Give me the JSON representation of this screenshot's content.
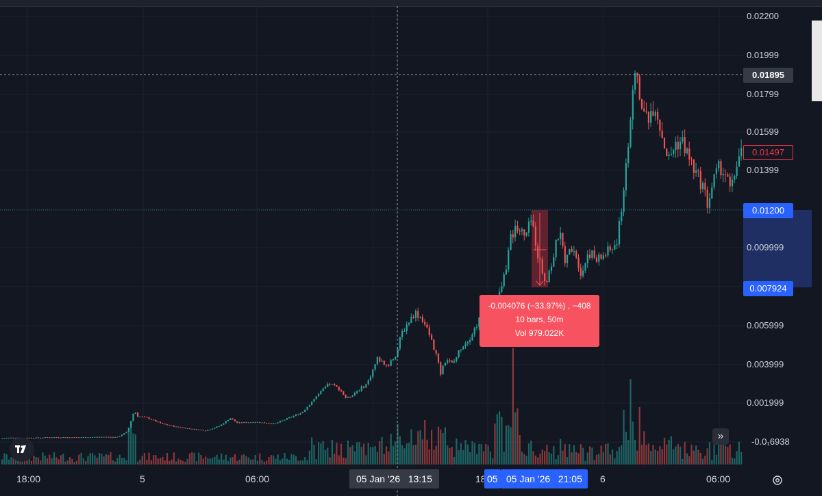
{
  "chart_data": {
    "type": "candlestick",
    "price_axis": {
      "tick_labels": [
        "0.02200",
        "0.01999",
        "0.01799",
        "0.01599",
        "0.01399",
        "0.009999",
        "0.005999",
        "0.003999",
        "0.001999",
        "-0.0₁6938"
      ],
      "last_price": "0.01895",
      "current_price": "0.01497",
      "range_high": "0.01200",
      "range_low": "0.007924"
    },
    "time_axis": {
      "tick_labels": [
        "18:00",
        "5",
        "06:00",
        "18",
        "6",
        "06:00"
      ],
      "crosshair_time": "05 Jan '26   13:15",
      "range_start_prefix": "05",
      "range_end_time": "05 Jan '26   21:05"
    },
    "measure_tooltip": {
      "line1": "-0.004076 (−33.97%) , −408",
      "line2": "10 bars, 50m",
      "line3": "Vol 979.022K"
    },
    "price_path": [
      [
        0,
        6e-05
      ],
      [
        25,
        8e-05
      ],
      [
        50,
        7e-05
      ],
      [
        75,
        0.0001
      ],
      [
        100,
        9e-05
      ],
      [
        125,
        0.0001
      ],
      [
        150,
        0.00012
      ],
      [
        170,
        0.0001
      ],
      [
        185,
        0.0004
      ],
      [
        195,
        0.0015
      ],
      [
        200,
        0.0012
      ],
      [
        215,
        0.0011
      ],
      [
        235,
        0.0008
      ],
      [
        255,
        0.00065
      ],
      [
        275,
        0.00055
      ],
      [
        300,
        0.00045
      ],
      [
        320,
        0.0007
      ],
      [
        335,
        0.0011
      ],
      [
        345,
        0.00085
      ],
      [
        370,
        0.0009
      ],
      [
        400,
        0.0008
      ],
      [
        420,
        0.0011
      ],
      [
        440,
        0.0014
      ],
      [
        460,
        0.0022
      ],
      [
        480,
        0.0029
      ],
      [
        495,
        0.0026
      ],
      [
        505,
        0.0021
      ],
      [
        520,
        0.0025
      ],
      [
        535,
        0.0029
      ],
      [
        550,
        0.0042
      ],
      [
        565,
        0.0038
      ],
      [
        578,
        0.0045
      ],
      [
        585,
        0.0055
      ],
      [
        595,
        0.0061
      ],
      [
        605,
        0.0066
      ],
      [
        615,
        0.0063
      ],
      [
        625,
        0.0055
      ],
      [
        635,
        0.0045
      ],
      [
        642,
        0.0034
      ],
      [
        650,
        0.0042
      ],
      [
        660,
        0.0039
      ],
      [
        672,
        0.0048
      ],
      [
        685,
        0.0053
      ],
      [
        698,
        0.0062
      ],
      [
        710,
        0.0064
      ],
      [
        725,
        0.0071
      ],
      [
        735,
        0.0085
      ],
      [
        745,
        0.0105
      ],
      [
        755,
        0.0112
      ],
      [
        765,
        0.0104
      ],
      [
        775,
        0.0114
      ],
      [
        785,
        0.0095
      ],
      [
        795,
        0.0082
      ],
      [
        805,
        0.0092
      ],
      [
        815,
        0.0108
      ],
      [
        825,
        0.0092
      ],
      [
        835,
        0.0102
      ],
      [
        848,
        0.0086
      ],
      [
        858,
        0.0098
      ],
      [
        870,
        0.0093
      ],
      [
        885,
        0.0097
      ],
      [
        900,
        0.0102
      ],
      [
        908,
        0.0125
      ],
      [
        915,
        0.0152
      ],
      [
        922,
        0.0175
      ],
      [
        928,
        0.0192
      ],
      [
        935,
        0.0172
      ],
      [
        945,
        0.0168
      ],
      [
        955,
        0.0175
      ],
      [
        965,
        0.0159
      ],
      [
        975,
        0.0145
      ],
      [
        985,
        0.0154
      ],
      [
        995,
        0.0155
      ],
      [
        1005,
        0.0146
      ],
      [
        1015,
        0.0138
      ],
      [
        1025,
        0.0132
      ],
      [
        1032,
        0.0122
      ],
      [
        1040,
        0.0134
      ],
      [
        1050,
        0.0142
      ],
      [
        1058,
        0.0138
      ],
      [
        1066,
        0.0128
      ],
      [
        1075,
        0.0145
      ],
      [
        1082,
        0.015
      ]
    ]
  }
}
